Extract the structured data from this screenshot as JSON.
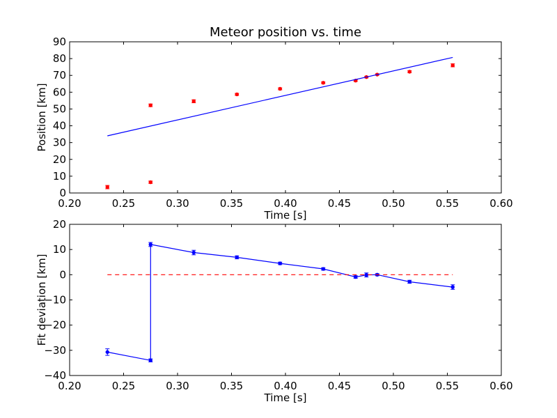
{
  "chart_data": [
    {
      "type": "scatter",
      "title": "Meteor position vs. time",
      "xlabel": "Time [s]",
      "ylabel": "Position [km]",
      "xlim": [
        0.2,
        0.6
      ],
      "ylim": [
        0,
        90
      ],
      "xticks": [
        "0.20",
        "0.25",
        "0.30",
        "0.35",
        "0.40",
        "0.45",
        "0.50",
        "0.55",
        "0.60"
      ],
      "yticks": [
        "0",
        "10",
        "20",
        "30",
        "40",
        "50",
        "60",
        "70",
        "80",
        "90"
      ],
      "grid": false,
      "series": [
        {
          "kind": "errorbar-points",
          "color": "#ff0000",
          "x": [
            0.235,
            0.275,
            0.275,
            0.315,
            0.355,
            0.395,
            0.435,
            0.465,
            0.475,
            0.485,
            0.515,
            0.555
          ],
          "y": [
            3.5,
            6.4,
            52.2,
            54.6,
            58.7,
            62.0,
            65.6,
            66.9,
            69.0,
            70.5,
            72.2,
            76.0
          ],
          "yerr": [
            1.0,
            0.7,
            0.8,
            0.9,
            0.6,
            0.6,
            0.5,
            0.5,
            0.5,
            0.4,
            0.6,
            0.9
          ]
        },
        {
          "kind": "fit-line",
          "color": "#0000ff",
          "x": [
            0.235,
            0.555
          ],
          "y": [
            34.0,
            80.7
          ]
        }
      ]
    },
    {
      "type": "line",
      "title": "",
      "xlabel": "Time [s]",
      "ylabel": "Fit deviation [km]",
      "xlim": [
        0.2,
        0.6
      ],
      "ylim": [
        -40,
        20
      ],
      "xticks": [
        "0.20",
        "0.25",
        "0.30",
        "0.35",
        "0.40",
        "0.45",
        "0.50",
        "0.55",
        "0.60"
      ],
      "yticks": [
        "−40",
        "−30",
        "−20",
        "−10",
        "0",
        "10",
        "20"
      ],
      "grid": false,
      "series": [
        {
          "kind": "errorbar-line",
          "color": "#0000ff",
          "x": [
            0.235,
            0.275,
            0.275,
            0.315,
            0.355,
            0.395,
            0.435,
            0.465,
            0.475,
            0.485,
            0.515,
            0.555
          ],
          "y": [
            -30.7,
            -34.0,
            12.0,
            8.8,
            6.9,
            4.5,
            2.3,
            -0.9,
            -0.1,
            0.0,
            -2.8,
            -4.9
          ],
          "yerr": [
            1.3,
            0.6,
            0.8,
            0.9,
            0.6,
            0.5,
            0.5,
            0.5,
            0.8,
            0.4,
            0.6,
            0.9
          ]
        },
        {
          "kind": "reference-line",
          "color": "#ff0000",
          "style": "dashed",
          "x": [
            0.235,
            0.555
          ],
          "y": [
            0,
            0
          ]
        }
      ]
    }
  ]
}
